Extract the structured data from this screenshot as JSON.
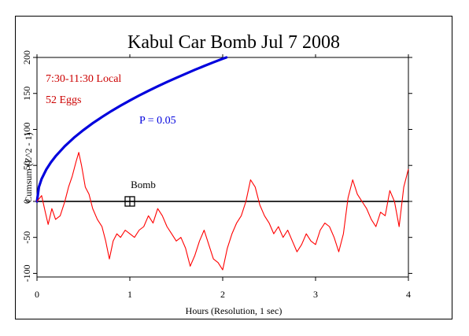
{
  "chart_data": {
    "type": "line",
    "title": "Kabul Car Bomb Jul 7 2008",
    "xlabel": "Hours (Resolution, 1 sec)",
    "ylabel": "Cumsum (Z^2 - 1)",
    "xlim": [
      0,
      4
    ],
    "ylim": [
      -105,
      200
    ],
    "x_ticks": [
      "0",
      "1",
      "2",
      "3",
      "4"
    ],
    "x_tick_values": [
      0,
      1,
      2,
      3,
      4
    ],
    "y_ticks": [
      "-100",
      "-50",
      "0",
      "50",
      "100",
      "150",
      "200"
    ],
    "y_tick_values": [
      -100,
      -50,
      0,
      50,
      100,
      150,
      200
    ],
    "grid": false,
    "annotations": {
      "time_window": "7:30-11:30 Local",
      "eggs": "52 Eggs",
      "p_label": "P = 0.05",
      "event_label": "Bomb"
    },
    "event_marker": {
      "x": 1.0,
      "y": 0
    },
    "baseline": 0,
    "colors": {
      "cumsum": "#ff0000",
      "probability": "#0000dd",
      "annotation_red": "#cc0000",
      "axis": "#000000"
    },
    "series": [
      {
        "key": "cumsum",
        "x": [
          0,
          0.05,
          0.09,
          0.12,
          0.16,
          0.2,
          0.25,
          0.3,
          0.34,
          0.38,
          0.42,
          0.45,
          0.48,
          0.52,
          0.56,
          0.6,
          0.65,
          0.7,
          0.74,
          0.78,
          0.82,
          0.86,
          0.9,
          0.95,
          1.0,
          1.05,
          1.1,
          1.15,
          1.2,
          1.25,
          1.3,
          1.35,
          1.4,
          1.45,
          1.5,
          1.55,
          1.6,
          1.65,
          1.7,
          1.75,
          1.8,
          1.85,
          1.9,
          1.95,
          2.0,
          2.05,
          2.1,
          2.15,
          2.2,
          2.25,
          2.3,
          2.35,
          2.4,
          2.45,
          2.5,
          2.55,
          2.6,
          2.65,
          2.7,
          2.75,
          2.8,
          2.85,
          2.9,
          2.95,
          3.0,
          3.05,
          3.1,
          3.15,
          3.2,
          3.25,
          3.3,
          3.35,
          3.4,
          3.45,
          3.5,
          3.55,
          3.6,
          3.65,
          3.7,
          3.75,
          3.8,
          3.85,
          3.9,
          3.95,
          4.0
        ],
        "values": [
          0,
          8,
          -15,
          -32,
          -10,
          -25,
          -20,
          0,
          20,
          35,
          55,
          68,
          50,
          20,
          10,
          -10,
          -25,
          -35,
          -55,
          -80,
          -55,
          -45,
          -50,
          -40,
          -45,
          -50,
          -40,
          -35,
          -20,
          -30,
          -10,
          -20,
          -35,
          -45,
          -55,
          -50,
          -65,
          -90,
          -75,
          -55,
          -40,
          -60,
          -80,
          -85,
          -95,
          -65,
          -45,
          -30,
          -20,
          0,
          30,
          20,
          -5,
          -20,
          -30,
          -45,
          -35,
          -50,
          -40,
          -55,
          -70,
          -60,
          -45,
          -55,
          -60,
          -40,
          -30,
          -35,
          -50,
          -70,
          -45,
          5,
          30,
          10,
          0,
          -10,
          -25,
          -35,
          -15,
          -20,
          15,
          0,
          -35,
          20,
          45
        ]
      },
      {
        "key": "probability",
        "name": "P = 0.05",
        "x": [
          0,
          0.02,
          0.05,
          0.1,
          0.15,
          0.2,
          0.3,
          0.4,
          0.5,
          0.6,
          0.7,
          0.8,
          0.9,
          1.0,
          1.1,
          1.2,
          1.3,
          1.4,
          1.5,
          1.6,
          1.7,
          1.8,
          1.9,
          2.0,
          2.04
        ],
        "values": [
          0,
          19.8,
          31.3,
          44.3,
          54.3,
          62.7,
          76.8,
          88.7,
          99.1,
          108.6,
          117.3,
          125.4,
          133.0,
          140.2,
          147.1,
          153.6,
          159.9,
          165.9,
          171.7,
          177.3,
          182.8,
          188.1,
          193.2,
          198.2,
          200.0
        ]
      }
    ]
  }
}
